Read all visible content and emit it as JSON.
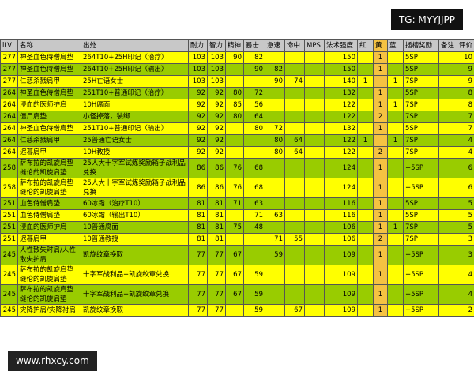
{
  "header": {
    "columns": [
      "iLV",
      "名称",
      "出处",
      "耐力",
      "智力",
      "精神",
      "暴击",
      "急速",
      "命中",
      "MPS",
      "法术强度",
      "红",
      "黄",
      "蓝",
      "插槽奖励",
      "备注",
      "评价"
    ]
  },
  "table": {
    "rows": [
      [
        277,
        "神圣血色侍僧肩垫",
        "264T10+25H印记（治疗）",
        103,
        103,
        90,
        82,
        null,
        null,
        null,
        150,
        null,
        1,
        null,
        "5SP",
        null,
        10
      ],
      [
        277,
        "神圣血色侍僧肩垫",
        "264T10+25H印记（输出）",
        103,
        103,
        null,
        90,
        82,
        null,
        null,
        150,
        null,
        1,
        null,
        "5SP",
        null,
        9
      ],
      [
        277,
        "仁慈杀戮肩甲",
        "25H亡语女士",
        103,
        103,
        null,
        null,
        90,
        74,
        null,
        140,
        1,
        null,
        1,
        "7SP",
        null,
        9
      ],
      [
        264,
        "神圣血色侍僧肩垫",
        "251T10+普通印记（治疗）",
        92,
        92,
        80,
        72,
        null,
        null,
        null,
        132,
        null,
        1,
        null,
        "5SP",
        null,
        8
      ],
      [
        264,
        "浸血的医师护肩",
        "10H腐面",
        92,
        92,
        85,
        56,
        null,
        null,
        null,
        122,
        null,
        1,
        1,
        "7SP",
        null,
        8
      ],
      [
        264,
        "僵尸肩垫",
        "小怪掉落，装绑",
        92,
        92,
        80,
        64,
        null,
        null,
        null,
        122,
        null,
        2,
        null,
        "7SP",
        null,
        7
      ],
      [
        264,
        "神圣血色侍僧肩垫",
        "251T10+普通印记（输出）",
        92,
        92,
        null,
        80,
        72,
        null,
        null,
        132,
        null,
        1,
        null,
        "5SP",
        null,
        7
      ],
      [
        264,
        "仁慈杀戮肩甲",
        "25普通亡语女士",
        92,
        92,
        null,
        null,
        80,
        64,
        null,
        122,
        1,
        null,
        1,
        "7SP",
        null,
        4
      ],
      [
        264,
        "迟暮肩甲",
        "10H教授",
        92,
        92,
        null,
        null,
        80,
        64,
        null,
        122,
        null,
        2,
        null,
        "7SP",
        null,
        4
      ],
      [
        258,
        "萨布拉的凯旋肩垫 缝伦的凯旋肩垫",
        "25人大十字军试炼奖励箱子战利品兑换",
        86,
        86,
        76,
        68,
        null,
        null,
        null,
        124,
        null,
        1,
        null,
        "+5SP",
        null,
        6
      ],
      [
        258,
        "萨布拉的凯旋肩垫 缝伦的凯旋肩垫",
        "25人大十字军试炼奖励箱子战利品兑换",
        86,
        86,
        76,
        68,
        null,
        null,
        null,
        124,
        null,
        1,
        null,
        "+5SP",
        null,
        6
      ],
      [
        251,
        "血色侍僧肩垫",
        "60冰霜（治疗T10）",
        81,
        81,
        71,
        63,
        null,
        null,
        null,
        116,
        null,
        1,
        null,
        "5SP",
        null,
        5
      ],
      [
        251,
        "血色侍僧肩垫",
        "60冰霜（输出T10）",
        81,
        81,
        null,
        71,
        63,
        null,
        null,
        116,
        null,
        1,
        null,
        "5SP",
        null,
        5
      ],
      [
        251,
        "浸血的医师护肩",
        "10普通腐面",
        81,
        81,
        75,
        48,
        null,
        null,
        null,
        106,
        null,
        1,
        1,
        "7SP",
        null,
        5
      ],
      [
        251,
        "迟暮肩甲",
        "10普通教授",
        81,
        81,
        null,
        null,
        71,
        55,
        null,
        106,
        null,
        2,
        null,
        "7SP",
        null,
        3
      ],
      [
        245,
        "人性散失时肩/人性散失护肩",
        "凯旋纹章换取",
        77,
        77,
        67,
        null,
        59,
        null,
        null,
        109,
        null,
        1,
        null,
        "+5SP",
        null,
        3
      ],
      [
        245,
        "萨布拉的凯旋肩垫 缝伦的凯旋肩垫",
        "十字军战利品+凯旋纹章兑换",
        77,
        77,
        67,
        59,
        null,
        null,
        null,
        109,
        null,
        1,
        null,
        "+5SP",
        null,
        4
      ],
      [
        245,
        "萨布拉的凯旋肩垫 缝伦的凯旋肩垫",
        "十字军战利品+凯旋纹章兑换",
        77,
        77,
        67,
        59,
        null,
        null,
        null,
        109,
        null,
        1,
        null,
        "+5SP",
        null,
        4
      ],
      [
        245,
        "灾降护肩/灾降衬肩",
        "凯旋纹章换取",
        77,
        77,
        null,
        59,
        null,
        67,
        null,
        109,
        null,
        1,
        null,
        "+5SP",
        null,
        2
      ]
    ]
  },
  "watermarks": {
    "top": "TG: MYYJJPP",
    "bottom": "www.rhxcy.com"
  }
}
